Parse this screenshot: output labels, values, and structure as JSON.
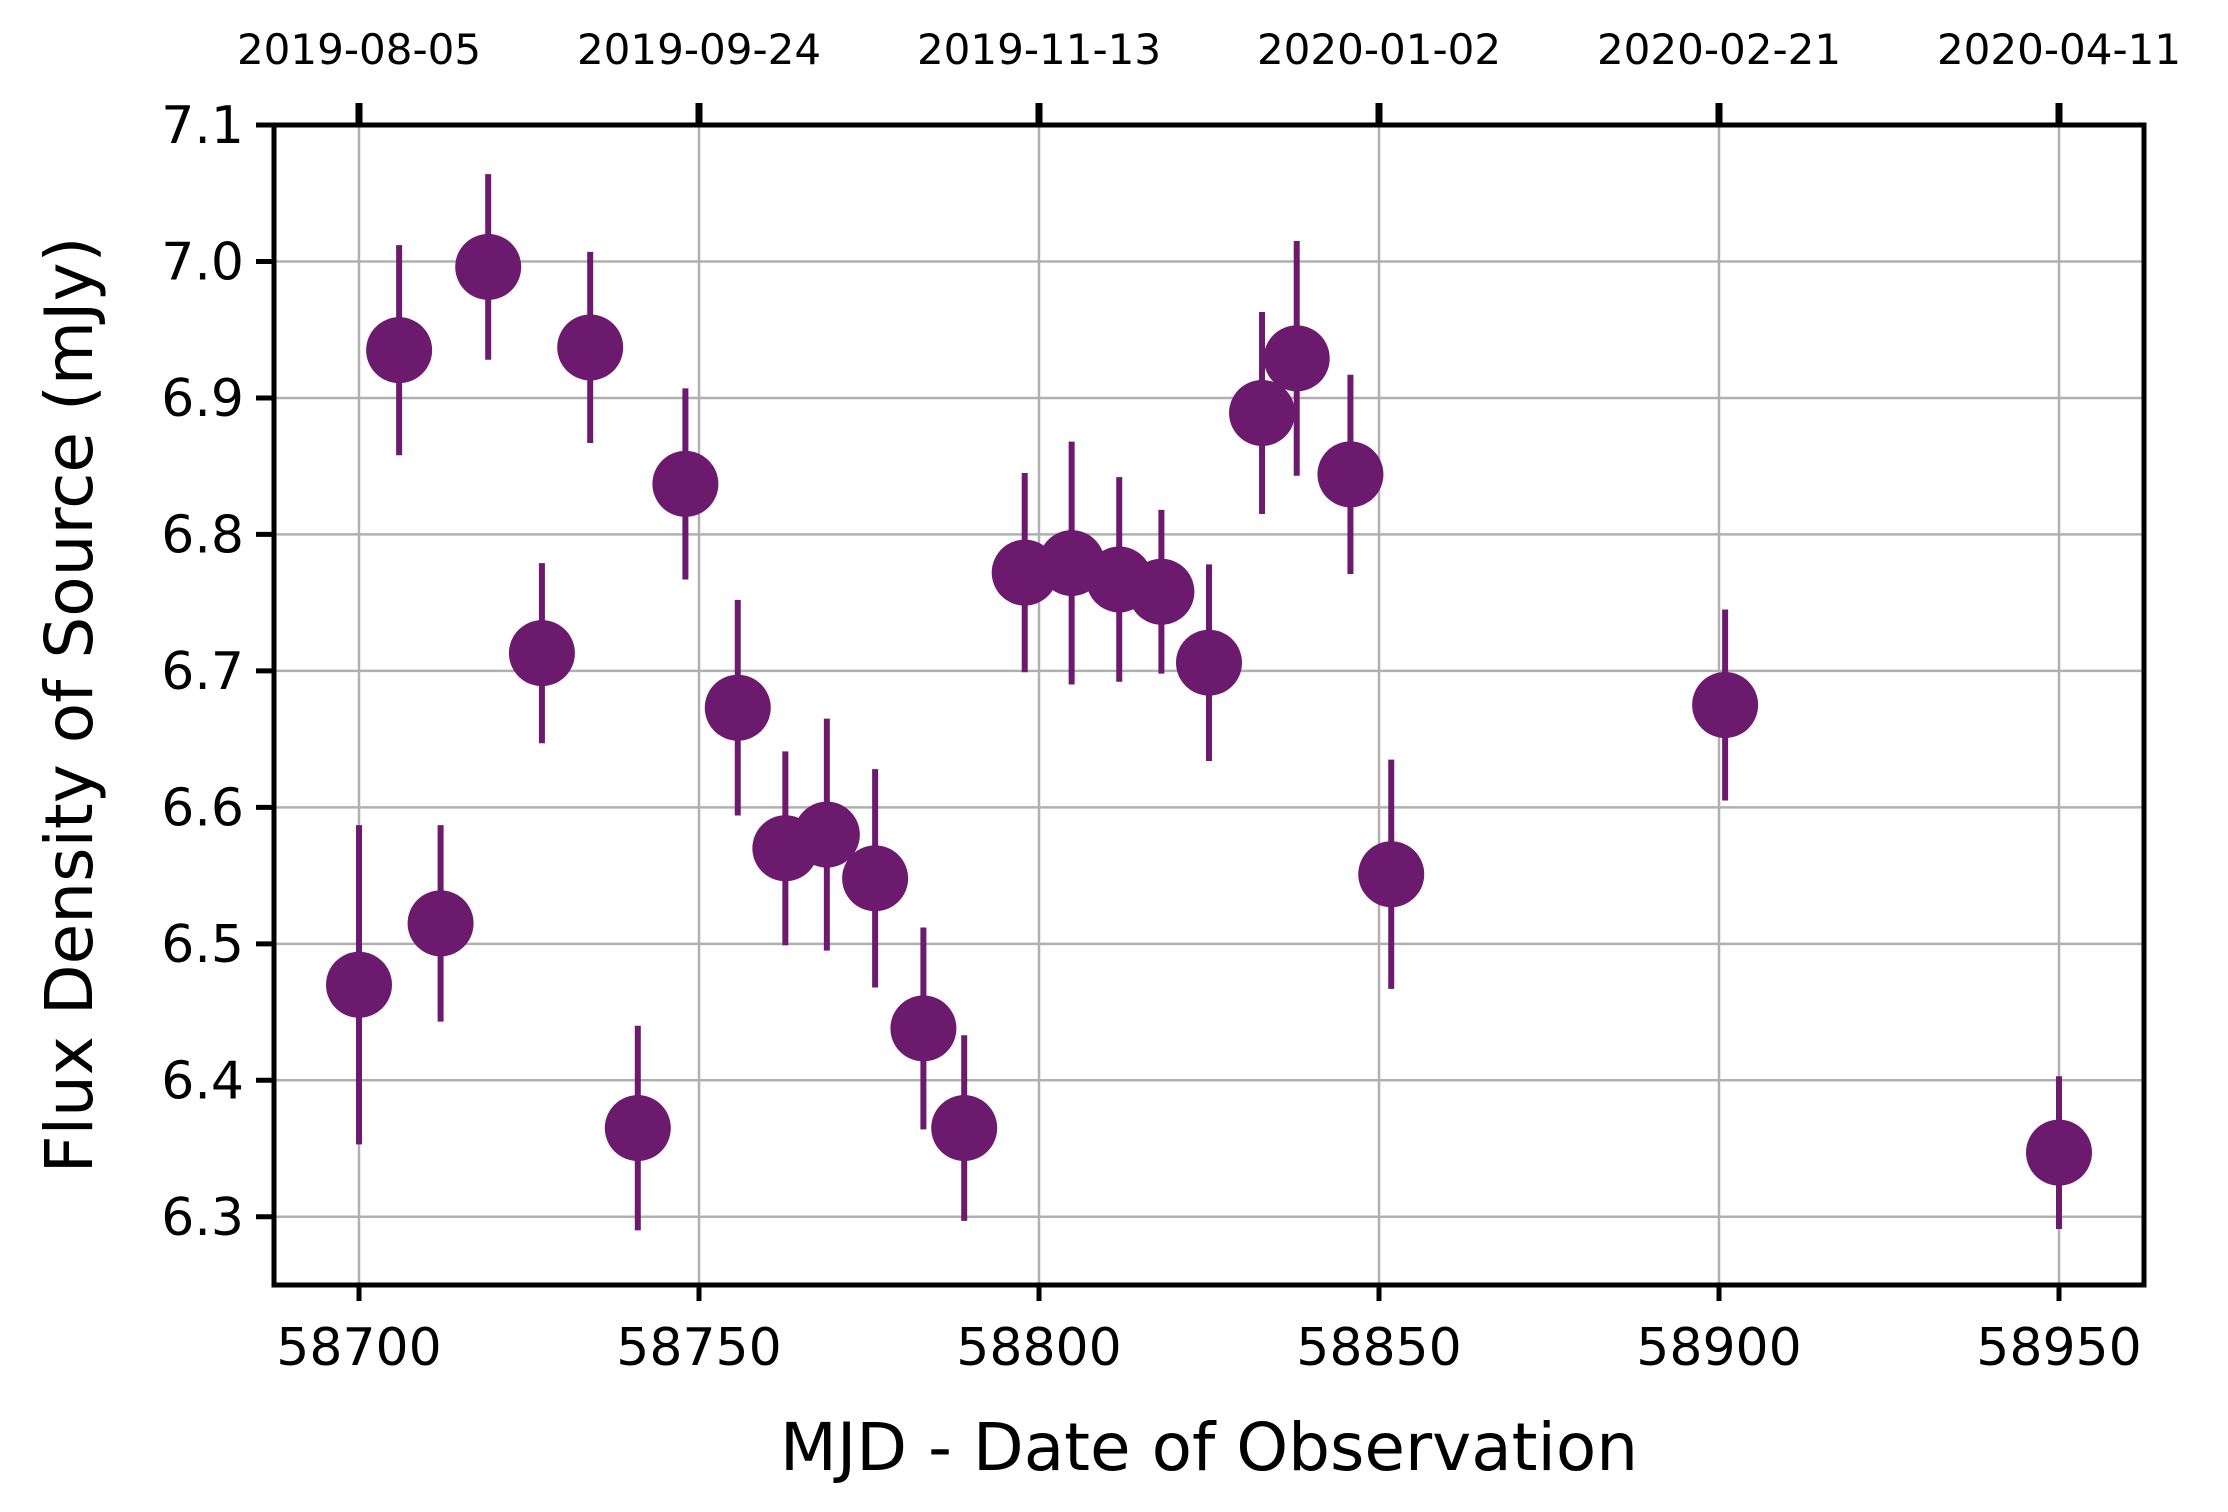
{
  "chart_data": {
    "type": "scatter",
    "title": "",
    "xlabel": "MJD - Date of Observation",
    "ylabel": "Flux Density of Source (mJy)",
    "xlim": [
      58687.5,
      58962.5
    ],
    "ylim": [
      6.25,
      7.1
    ],
    "xticks": [
      58700,
      58750,
      58800,
      58850,
      58900,
      58950
    ],
    "xtick_labels": [
      "58700",
      "58750",
      "58800",
      "58850",
      "58900",
      "58950"
    ],
    "yticks": [
      6.3,
      6.4,
      6.5,
      6.6,
      6.7,
      6.8,
      6.9,
      7.0,
      7.1
    ],
    "ytick_labels": [
      "6.3",
      "6.4",
      "6.5",
      "6.6",
      "6.7",
      "6.8",
      "6.9",
      "7.0",
      "7.1"
    ],
    "top_axis": {
      "ticks": [
        58700,
        58750,
        58800,
        58850,
        58900,
        58950
      ],
      "labels": [
        "2019-08-05",
        "2019-09-24",
        "2019-11-13",
        "2020-01-02",
        "2020-02-21",
        "2020-04-11"
      ]
    },
    "grid": true,
    "color": "#6b1a6e",
    "points": [
      {
        "x": 58700.0,
        "y": 6.47,
        "err": 0.117
      },
      {
        "x": 58705.9,
        "y": 6.935,
        "err": 0.077
      },
      {
        "x": 58712.0,
        "y": 6.515,
        "err": 0.072
      },
      {
        "x": 58719.0,
        "y": 6.996,
        "err": 0.068
      },
      {
        "x": 58726.9,
        "y": 6.713,
        "err": 0.066
      },
      {
        "x": 58734.0,
        "y": 6.937,
        "err": 0.07
      },
      {
        "x": 58741.0,
        "y": 6.365,
        "err": 0.075
      },
      {
        "x": 58748.0,
        "y": 6.837,
        "err": 0.07
      },
      {
        "x": 58755.7,
        "y": 6.673,
        "err": 0.079
      },
      {
        "x": 58762.7,
        "y": 6.57,
        "err": 0.071
      },
      {
        "x": 58768.8,
        "y": 6.58,
        "err": 0.085
      },
      {
        "x": 58775.9,
        "y": 6.548,
        "err": 0.08
      },
      {
        "x": 58783.0,
        "y": 6.438,
        "err": 0.074
      },
      {
        "x": 58789.0,
        "y": 6.365,
        "err": 0.068
      },
      {
        "x": 58797.9,
        "y": 6.772,
        "err": 0.073
      },
      {
        "x": 58804.8,
        "y": 6.779,
        "err": 0.089
      },
      {
        "x": 58811.8,
        "y": 6.767,
        "err": 0.075
      },
      {
        "x": 58818.0,
        "y": 6.758,
        "err": 0.06
      },
      {
        "x": 58825.0,
        "y": 6.706,
        "err": 0.072
      },
      {
        "x": 58832.8,
        "y": 6.889,
        "err": 0.074
      },
      {
        "x": 58837.9,
        "y": 6.929,
        "err": 0.086
      },
      {
        "x": 58845.8,
        "y": 6.844,
        "err": 0.073
      },
      {
        "x": 58851.8,
        "y": 6.551,
        "err": 0.084
      },
      {
        "x": 58900.9,
        "y": 6.675,
        "err": 0.07
      },
      {
        "x": 58950.0,
        "y": 6.347,
        "err": 0.056
      }
    ]
  }
}
